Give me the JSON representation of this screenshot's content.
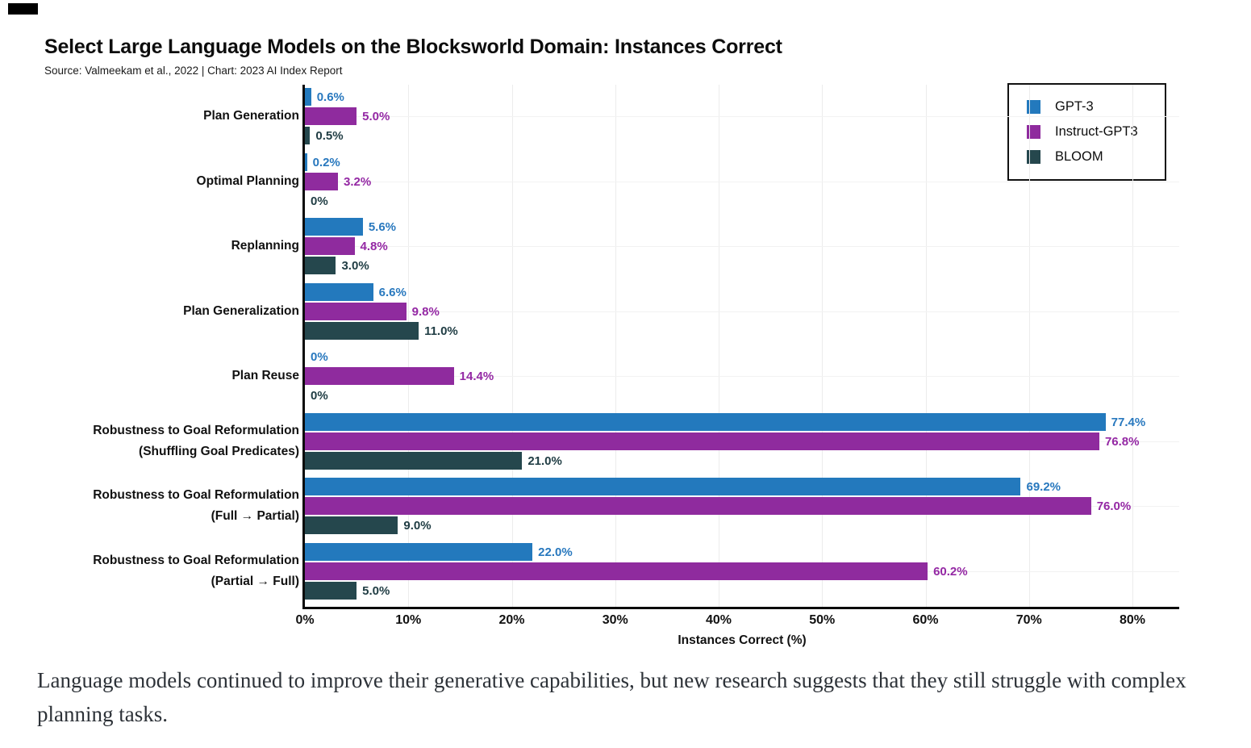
{
  "header": {
    "title": "Select Large Language Models on the Blocksworld Domain: Instances Correct",
    "source_line": "Source: Valmeekam et al., 2022 | Chart: 2023 AI Index Report"
  },
  "legend": {
    "position": "top-right",
    "items": [
      {
        "label": "GPT-3",
        "color": "#2379BD"
      },
      {
        "label": "Instruct-GPT3",
        "color": "#8F2B9E"
      },
      {
        "label": "BLOOM",
        "color": "#25474D"
      }
    ]
  },
  "chart_data": {
    "type": "bar",
    "orientation": "horizontal",
    "title": "Select Large Language Models on the Blocksworld Domain: Instances Correct",
    "xlabel": "Instances Correct (%)",
    "ylabel": "",
    "xlim": [
      0,
      84.5
    ],
    "x_tick_values": [
      0,
      10,
      20,
      30,
      40,
      50,
      60,
      70,
      80
    ],
    "x_tick_labels": [
      "0%",
      "10%",
      "20%",
      "30%",
      "40%",
      "50%",
      "60%",
      "70%",
      "80%"
    ],
    "grid": "faint vertical gridlines at each 10%, faint horizontal gridlines at category centers",
    "categories": [
      "Plan Generation",
      "Optimal Planning",
      "Replanning",
      "Plan Generalization",
      "Plan Reuse",
      "Robustness to Goal Reformulation\n(Shuffling Goal Predicates)",
      "Robustness to Goal Reformulation\n(Full → Partial)",
      "Robustness to Goal Reformulation\n(Partial → Full)"
    ],
    "series": [
      {
        "name": "GPT-3",
        "color": "#2379BD",
        "label_color": "#2878BE",
        "values": [
          0.6,
          0.2,
          5.6,
          6.6,
          0,
          77.4,
          69.2,
          22.0
        ],
        "labels": [
          "0.6%",
          "0.2%",
          "5.6%",
          "6.6%",
          "0%",
          "77.4%",
          "69.2%",
          "22.0%"
        ]
      },
      {
        "name": "Instruct-GPT3",
        "color": "#8F2B9E",
        "label_color": "#9428A4",
        "values": [
          5.0,
          3.2,
          4.8,
          9.8,
          14.4,
          76.8,
          76.0,
          60.2
        ],
        "labels": [
          "5.0%",
          "3.2%",
          "4.8%",
          "9.8%",
          "14.4%",
          "76.8%",
          "76.0%",
          "60.2%"
        ]
      },
      {
        "name": "BLOOM",
        "color": "#25474D",
        "label_color": "#1F3C43",
        "values": [
          0.5,
          0,
          3.0,
          11.0,
          0,
          21.0,
          9.0,
          5.0
        ],
        "labels": [
          "0.5%",
          "0%",
          "3.0%",
          "11.0%",
          "0%",
          "21.0%",
          "9.0%",
          "5.0%"
        ]
      }
    ]
  },
  "caption": "Language models continued to improve their generative capabilities, but new research suggests that they still struggle with complex planning tasks."
}
